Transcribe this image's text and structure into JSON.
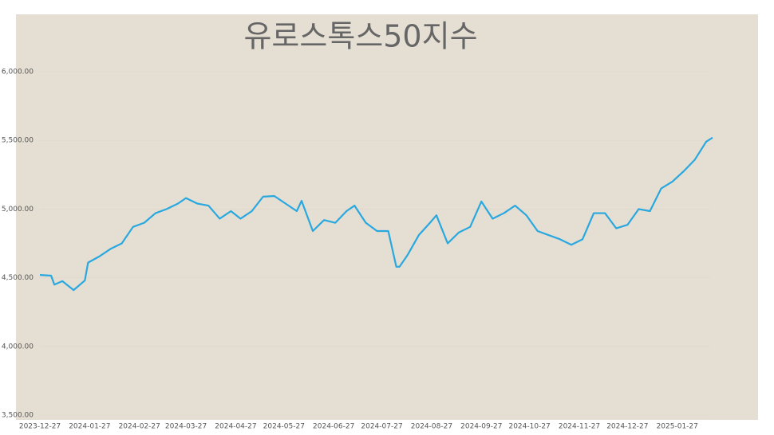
{
  "chart_data": {
    "type": "line",
    "title": "유로스톡스50지수",
    "x": [
      "2023-12-27",
      "2024-01-03",
      "2024-01-05",
      "2024-01-10",
      "2024-01-17",
      "2024-01-24",
      "2024-01-26",
      "2024-02-02",
      "2024-02-09",
      "2024-02-16",
      "2024-02-23",
      "2024-03-01",
      "2024-03-08",
      "2024-03-15",
      "2024-03-22",
      "2024-03-27",
      "2024-04-03",
      "2024-04-10",
      "2024-04-17",
      "2024-04-24",
      "2024-04-30",
      "2024-05-07",
      "2024-05-14",
      "2024-05-21",
      "2024-05-28",
      "2024-06-04",
      "2024-06-07",
      "2024-06-14",
      "2024-06-21",
      "2024-06-28",
      "2024-07-05",
      "2024-07-10",
      "2024-07-17",
      "2024-07-24",
      "2024-07-31",
      "2024-08-05",
      "2024-08-07",
      "2024-08-12",
      "2024-08-19",
      "2024-08-26",
      "2024-08-30",
      "2024-09-06",
      "2024-09-13",
      "2024-09-20",
      "2024-09-27",
      "2024-10-04",
      "2024-10-11",
      "2024-10-18",
      "2024-10-25",
      "2024-11-01",
      "2024-11-08",
      "2024-11-15",
      "2024-11-22",
      "2024-11-29",
      "2024-12-06",
      "2024-12-13",
      "2024-12-20",
      "2024-12-27",
      "2025-01-03",
      "2025-01-10",
      "2025-01-17",
      "2025-01-24",
      "2025-01-31",
      "2025-02-07",
      "2025-02-14",
      "2025-02-18"
    ],
    "series": [
      {
        "name": "유로스톡스50지수",
        "color": "#29a8e0",
        "values": [
          4520,
          4515,
          4450,
          4475,
          4410,
          4480,
          4610,
          4655,
          4710,
          4750,
          4870,
          4900,
          4970,
          5000,
          5040,
          5080,
          5040,
          5025,
          4930,
          4985,
          4930,
          4985,
          5090,
          5095,
          5040,
          4985,
          5060,
          4840,
          4920,
          4900,
          4985,
          5025,
          4900,
          4840,
          4840,
          4580,
          4580,
          4665,
          4810,
          4900,
          4955,
          4750,
          4830,
          4870,
          5055,
          4930,
          4970,
          5025,
          4955,
          4840,
          4810,
          4780,
          4740,
          4780,
          4970,
          4970,
          4860,
          4885,
          5000,
          4985,
          5150,
          5200,
          5275,
          5360,
          5490,
          5520
        ]
      }
    ],
    "xlim": [
      "2023-12-27",
      "2025-02-18"
    ],
    "xticks": [
      "2023-12-27",
      "2024-01-27",
      "2024-02-27",
      "2024-03-27",
      "2024-04-27",
      "2024-05-27",
      "2024-06-27",
      "2024-07-27",
      "2024-08-27",
      "2024-09-27",
      "2024-10-27",
      "2024-11-27",
      "2024-12-27",
      "2025-01-27"
    ],
    "ylim": [
      3500,
      6000
    ],
    "yticks": [
      {
        "value": 3500,
        "label": "3,500.00"
      },
      {
        "value": 4000,
        "label": "4,000.00"
      },
      {
        "value": 4500,
        "label": "4,500.00"
      },
      {
        "value": 5000,
        "label": "5,000.00"
      },
      {
        "value": 5500,
        "label": "5,500.00"
      },
      {
        "value": 6000,
        "label": "6,000.00"
      }
    ],
    "grid": true
  }
}
